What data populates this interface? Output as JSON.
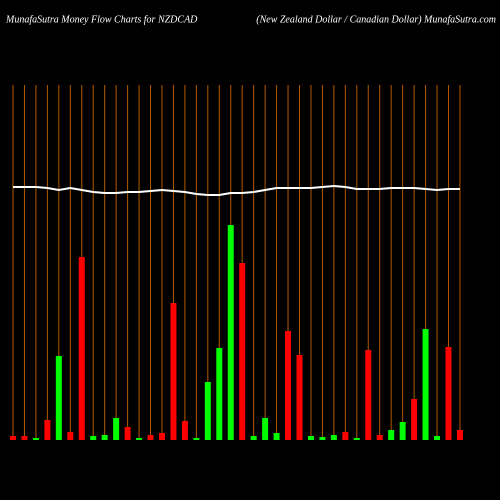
{
  "chart_data": {
    "type": "bar",
    "title": "MunafaSutra  Money Flow  Charts for NZDCAD",
    "subtitle": "(New  Zealand Dollar / Canadian  Dollar) MunafaSutra.com",
    "categories": [
      null,
      null,
      null,
      null,
      null,
      null,
      null,
      null,
      null,
      null,
      null,
      null,
      null,
      null,
      null,
      null,
      null,
      null,
      null,
      null,
      null,
      null,
      null,
      null,
      null,
      null,
      null,
      null,
      null,
      null,
      null,
      null,
      null,
      null,
      null,
      null,
      null,
      null,
      null,
      null
    ],
    "ylim": [
      0,
      355
    ],
    "grid": true,
    "grid_color": "#b35900",
    "series": [
      {
        "type": "bar",
        "values": [
          4,
          4,
          2,
          20,
          84,
          8,
          183,
          4,
          5,
          22,
          13,
          2,
          5,
          7,
          137,
          19,
          2,
          58,
          92,
          215,
          177,
          4,
          22,
          7,
          109,
          85,
          4,
          3,
          5,
          8,
          2,
          90,
          5,
          10,
          18,
          41,
          111,
          4,
          93,
          10
        ],
        "colors": [
          "#ff0000",
          "#ff0000",
          "#00ff00",
          "#ff0000",
          "#00ff00",
          "#ff0000",
          "#ff0000",
          "#00ff00",
          "#00ff00",
          "#00ff00",
          "#ff0000",
          "#00ff00",
          "#ff0000",
          "#ff0000",
          "#ff0000",
          "#ff0000",
          "#00ff00",
          "#00ff00",
          "#00ff00",
          "#00ff00",
          "#ff0000",
          "#00ff00",
          "#00ff00",
          "#00ff00",
          "#ff0000",
          "#ff0000",
          "#00ff00",
          "#00ff00",
          "#00ff00",
          "#ff0000",
          "#00ff00",
          "#ff0000",
          "#ff0000",
          "#00ff00",
          "#00ff00",
          "#ff0000",
          "#00ff00",
          "#00ff00",
          "#ff0000",
          "#ff0000"
        ]
      },
      {
        "type": "line",
        "color": "#ffffff",
        "values": [
          253,
          253,
          253,
          252,
          250,
          252,
          250,
          248,
          247,
          247,
          248,
          248,
          249,
          250,
          249,
          248,
          246,
          245,
          245,
          247,
          247,
          248,
          250,
          252,
          252,
          252,
          252,
          253,
          254,
          253,
          251,
          251,
          251,
          252,
          252,
          252,
          251,
          250,
          251,
          251
        ]
      }
    ]
  }
}
